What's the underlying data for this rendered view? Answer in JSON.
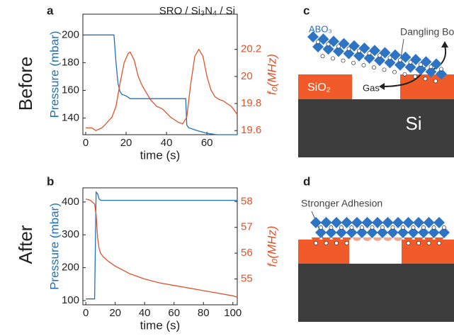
{
  "row_labels": [
    "Before",
    "After"
  ],
  "chart_data": [
    {
      "type": "line",
      "panel": "a",
      "title": "SRO / Si₃N₄ / Si",
      "xlabel": "time (s)",
      "ylabel": "Pressure (mbar)",
      "y2label": "f₀(MHz)",
      "xlim": [
        -1.4,
        75
      ],
      "xticks": [
        0,
        20,
        40,
        60
      ],
      "ylim": [
        128,
        215
      ],
      "yticks": [
        140,
        160,
        180,
        200
      ],
      "y2lim": [
        19.57,
        20.46
      ],
      "y2ticks": [
        19.6,
        19.8,
        20,
        20.2
      ],
      "series": [
        {
          "name": "Pressure (mbar)",
          "color": "#1f72b8",
          "x": [
            0,
            14,
            15,
            16,
            17,
            18,
            20,
            22,
            30,
            49.5,
            50,
            51,
            55,
            60,
            65,
            70,
            75
          ],
          "values": [
            200,
            200,
            180,
            165,
            159,
            157,
            156,
            154,
            154,
            154,
            135,
            133,
            131,
            129,
            128,
            128,
            128
          ]
        },
        {
          "name": "f₀(MHz)",
          "color": "#e0522a",
          "axis": "y2",
          "x": [
            0,
            3,
            5,
            8,
            10,
            13,
            15,
            17,
            19,
            21,
            22,
            24,
            26,
            28,
            30,
            32,
            35,
            38,
            40,
            42,
            44,
            46,
            48,
            50,
            52,
            54,
            56,
            58,
            60,
            62,
            64,
            66,
            68,
            70,
            72,
            75
          ],
          "values": [
            19.62,
            19.62,
            19.6,
            19.62,
            19.65,
            19.7,
            19.78,
            19.95,
            20.1,
            20.17,
            20.18,
            20.12,
            20.0,
            19.93,
            19.88,
            19.83,
            19.78,
            19.76,
            19.73,
            19.7,
            19.68,
            19.66,
            19.65,
            19.7,
            19.95,
            20.15,
            20.2,
            20.15,
            20.0,
            19.9,
            19.85,
            19.83,
            19.82,
            19.8,
            19.78,
            19.72
          ]
        }
      ]
    },
    {
      "type": "line",
      "panel": "b",
      "xlabel": "time (s)",
      "ylabel": "Pressure (mbar)",
      "y2label": "f₀(MHz)",
      "xlim": [
        -2,
        103
      ],
      "xticks": [
        0,
        20,
        40,
        60,
        80,
        100
      ],
      "ylim": [
        87,
        443
      ],
      "yticks": [
        100,
        200,
        300,
        400
      ],
      "y2lim": [
        54,
        58.53
      ],
      "y2ticks": [
        55,
        56,
        57,
        58
      ],
      "series": [
        {
          "name": "Pressure (mbar)",
          "color": "#1f72b8",
          "x": [
            0,
            6,
            7,
            8,
            9,
            10,
            103
          ],
          "values": [
            105,
            105,
            430,
            425,
            410,
            405,
            405
          ]
        },
        {
          "name": "f₀(MHz)",
          "color": "#e0522a",
          "axis": "y2",
          "x": [
            0,
            3,
            6,
            7,
            8,
            9,
            10,
            12,
            15,
            20,
            25,
            30,
            35,
            40,
            50,
            60,
            70,
            80,
            90,
            100,
            103
          ],
          "values": [
            58.1,
            58.05,
            57.9,
            57.5,
            56.6,
            56.2,
            56.0,
            55.85,
            55.7,
            55.5,
            55.35,
            55.2,
            55.1,
            55.0,
            54.85,
            54.75,
            54.65,
            54.55,
            54.45,
            54.35,
            54.3
          ]
        }
      ]
    }
  ],
  "diagrams": [
    {
      "panel": "c",
      "film": "ABO₃",
      "bonds": "Dangling Bonds",
      "oxide": "SiO₂",
      "gas": "Gas",
      "substrate": "Si"
    },
    {
      "panel": "d",
      "note": "Stronger Adhesion"
    }
  ]
}
